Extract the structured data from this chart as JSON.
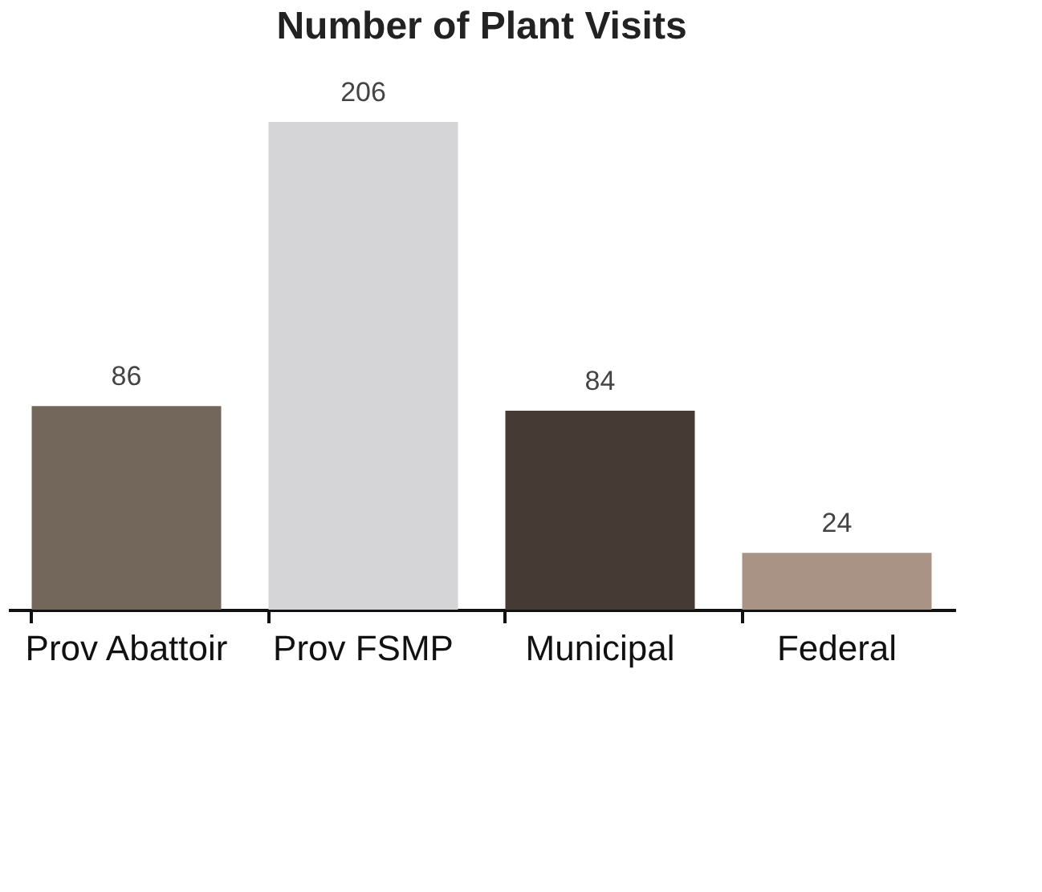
{
  "chart_data": {
    "type": "bar",
    "title": "Number of Plant Visits",
    "categories": [
      "Prov Abattoir",
      "Prov FSMP",
      "Municipal",
      "Federal"
    ],
    "values": [
      86,
      206,
      84,
      24
    ],
    "colors": [
      "#73675c",
      "#d5d5d7",
      "#453a34",
      "#a89385"
    ],
    "data_labels": true,
    "grid": false
  }
}
